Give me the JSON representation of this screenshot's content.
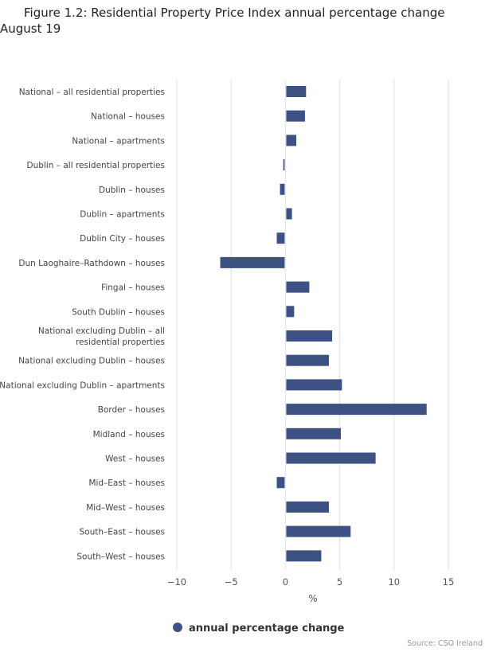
{
  "chart_data": {
    "type": "bar",
    "orientation": "horizontal",
    "title": "Figure 1.2: Residential Property Price Index annual percentage change August 19",
    "xlabel": "%",
    "ylabel": "",
    "xlim": [
      -10,
      15
    ],
    "xticks": [
      -10,
      -5,
      0,
      5,
      10,
      15
    ],
    "xtick_labels": [
      "−10",
      "−5",
      "0",
      "5",
      "10",
      "15"
    ],
    "grid": true,
    "legend_position": "bottom",
    "categories": [
      "National - all residential properties",
      "National - houses",
      "National - apartments",
      "Dublin - all residential properties",
      "Dublin - houses",
      "Dublin - apartments",
      "Dublin City - houses",
      "Dun Laoghaire-Rathdown - houses",
      "Fingal - houses",
      "South Dublin - houses",
      "National excluding Dublin - all residential properties",
      "National excluding Dublin - houses",
      "National excluding Dublin - apartments",
      "Border - houses",
      "Midland - houses",
      "West - houses",
      "Mid-East - houses",
      "Mid-West - houses",
      "South-East - houses",
      "South-West - houses"
    ],
    "category_label_lines": [
      [
        "National – all residential properties"
      ],
      [
        "National – houses"
      ],
      [
        "National – apartments"
      ],
      [
        "Dublin – all residential properties"
      ],
      [
        "Dublin – houses"
      ],
      [
        "Dublin – apartments"
      ],
      [
        "Dublin City – houses"
      ],
      [
        "Dun Laoghaire–Rathdown – houses"
      ],
      [
        "Fingal – houses"
      ],
      [
        "South Dublin – houses"
      ],
      [
        "National excluding Dublin – all",
        "residential properties"
      ],
      [
        "National excluding Dublin – houses"
      ],
      [
        "National excluding Dublin – apartments"
      ],
      [
        "Border – houses"
      ],
      [
        "Midland – houses"
      ],
      [
        "West – houses"
      ],
      [
        "Mid–East – houses"
      ],
      [
        "Mid–West – houses"
      ],
      [
        "South–East – houses"
      ],
      [
        "South–West – houses"
      ]
    ],
    "series": [
      {
        "name": "annual percentage change",
        "color": "#3d5282",
        "values": [
          1.9,
          1.8,
          1.0,
          -0.2,
          -0.5,
          0.6,
          -0.8,
          -6.0,
          2.2,
          0.8,
          4.3,
          4.0,
          5.2,
          13.0,
          5.1,
          8.3,
          -0.8,
          4.0,
          6.0,
          3.3
        ]
      }
    ],
    "source": "Source: CSO Ireland"
  }
}
